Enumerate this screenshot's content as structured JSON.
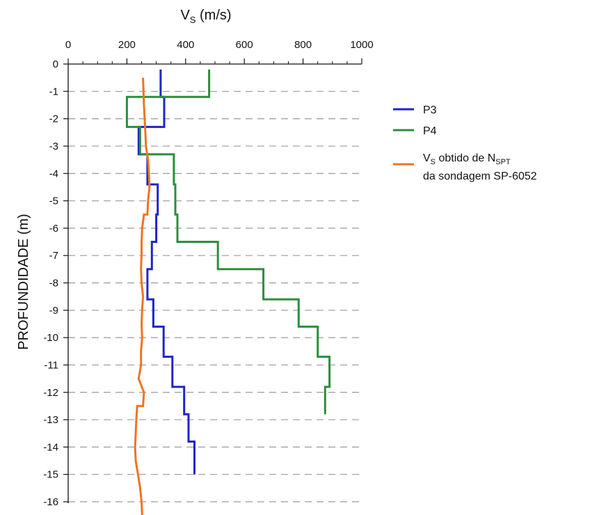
{
  "chart_data": {
    "type": "line",
    "x_axis": {
      "label_main": "V",
      "label_sub": "S",
      "label_rest": " (m/s)",
      "position": "top",
      "range": [
        0,
        1000
      ],
      "ticks": [
        0,
        200,
        400,
        600,
        800,
        1000
      ],
      "tick_labels": [
        "0",
        "200",
        "400",
        "600",
        "800",
        "1000"
      ]
    },
    "y_axis": {
      "label": "PROFUNDIDADE (m)",
      "range": [
        -16,
        0
      ],
      "ticks": [
        0,
        -1,
        -2,
        -3,
        -4,
        -5,
        -6,
        -7,
        -8,
        -9,
        -10,
        -11,
        -12,
        -13,
        -14,
        -15,
        -16
      ],
      "tick_labels": [
        "0",
        "-1",
        "-2",
        "-3",
        "-4",
        "-5",
        "-6",
        "-7",
        "-8",
        "-9",
        "-10",
        "-11",
        "-12",
        "-13",
        "-14",
        "-15",
        "-16"
      ]
    },
    "grid": "horizontal dashed",
    "legend_position": "right",
    "series": [
      {
        "name": "P3",
        "color": "#1f24c8",
        "points": [
          [
            315,
            -0.2
          ],
          [
            315,
            -1.2
          ],
          [
            327,
            -1.2
          ],
          [
            327,
            -2.3
          ],
          [
            240,
            -2.3
          ],
          [
            240,
            -3.3
          ],
          [
            270,
            -3.3
          ],
          [
            270,
            -4.4
          ],
          [
            305,
            -4.4
          ],
          [
            305,
            -5.5
          ],
          [
            300,
            -5.5
          ],
          [
            300,
            -6.5
          ],
          [
            285,
            -6.5
          ],
          [
            285,
            -7.5
          ],
          [
            270,
            -7.5
          ],
          [
            270,
            -8.6
          ],
          [
            290,
            -8.6
          ],
          [
            290,
            -9.6
          ],
          [
            325,
            -9.6
          ],
          [
            325,
            -10.7
          ],
          [
            355,
            -10.7
          ],
          [
            355,
            -11.8
          ],
          [
            395,
            -11.8
          ],
          [
            395,
            -12.8
          ],
          [
            410,
            -12.8
          ],
          [
            410,
            -13.8
          ],
          [
            430,
            -13.8
          ],
          [
            430,
            -15.0
          ]
        ]
      },
      {
        "name": "P4",
        "color": "#2a8f3b",
        "points": [
          [
            480,
            -0.2
          ],
          [
            480,
            -1.2
          ],
          [
            200,
            -1.2
          ],
          [
            200,
            -2.3
          ],
          [
            245,
            -2.3
          ],
          [
            245,
            -3.3
          ],
          [
            305,
            -3.3
          ],
          [
            305,
            -3.3
          ],
          [
            360,
            -3.3
          ],
          [
            360,
            -4.4
          ],
          [
            365,
            -4.4
          ],
          [
            365,
            -5.5
          ],
          [
            372,
            -5.5
          ],
          [
            372,
            -6.5
          ],
          [
            510,
            -6.5
          ],
          [
            510,
            -7.5
          ],
          [
            665,
            -7.5
          ],
          [
            665,
            -8.6
          ],
          [
            785,
            -8.6
          ],
          [
            785,
            -9.6
          ],
          [
            850,
            -9.6
          ],
          [
            850,
            -10.7
          ],
          [
            890,
            -10.7
          ],
          [
            890,
            -11.8
          ],
          [
            875,
            -11.8
          ],
          [
            875,
            -12.8
          ]
        ]
      },
      {
        "name_main": "V",
        "name_sub": "S",
        "name_mid": " obtido de N",
        "name_sub2": "SPT",
        "name_line2": "da sondagem SP-6052",
        "color": "#ee7422",
        "points": [
          [
            255,
            -0.5
          ],
          [
            258,
            -1.5
          ],
          [
            263,
            -2.5
          ],
          [
            265,
            -3.0
          ],
          [
            272,
            -3.5
          ],
          [
            275,
            -4.0
          ],
          [
            277,
            -4.5
          ],
          [
            272,
            -5.0
          ],
          [
            270,
            -5.5
          ],
          [
            258,
            -5.5
          ],
          [
            252,
            -6.0
          ],
          [
            250,
            -6.5
          ],
          [
            250,
            -7.0
          ],
          [
            248,
            -7.5
          ],
          [
            250,
            -8.0
          ],
          [
            255,
            -8.5
          ],
          [
            252,
            -9.0
          ],
          [
            250,
            -9.5
          ],
          [
            252,
            -10.0
          ],
          [
            248,
            -10.5
          ],
          [
            248,
            -11.0
          ],
          [
            240,
            -11.5
          ],
          [
            258,
            -12.0
          ],
          [
            255,
            -12.5
          ],
          [
            235,
            -12.5
          ],
          [
            232,
            -13.0
          ],
          [
            230,
            -13.5
          ],
          [
            228,
            -14.0
          ],
          [
            230,
            -14.5
          ],
          [
            238,
            -15.0
          ],
          [
            245,
            -15.5
          ],
          [
            250,
            -16.0
          ],
          [
            252,
            -16.5
          ]
        ]
      }
    ]
  }
}
